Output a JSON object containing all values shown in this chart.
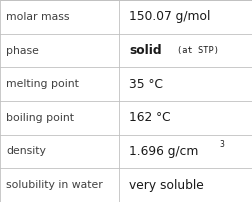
{
  "rows": [
    {
      "label": "molar mass",
      "type": "simple",
      "value": "150.07 g/mol"
    },
    {
      "label": "phase",
      "type": "phase",
      "value": "solid",
      "suffix": "(at STP)"
    },
    {
      "label": "melting point",
      "type": "simple",
      "value": "35 °C"
    },
    {
      "label": "boiling point",
      "type": "simple",
      "value": "162 °C"
    },
    {
      "label": "density",
      "type": "super",
      "value": "1.696 g/cm",
      "superscript": "3"
    },
    {
      "label": "solubility in water",
      "type": "simple",
      "value": "very soluble"
    }
  ],
  "col_split": 0.472,
  "bg_color": "#ffffff",
  "border_color": "#c0c0c0",
  "label_color": "#404040",
  "value_color": "#1a1a1a",
  "label_fontsize": 7.8,
  "value_fontsize": 8.8,
  "small_fontsize": 6.2,
  "super_fontsize": 5.5,
  "fig_width": 2.52,
  "fig_height": 2.02,
  "dpi": 100
}
